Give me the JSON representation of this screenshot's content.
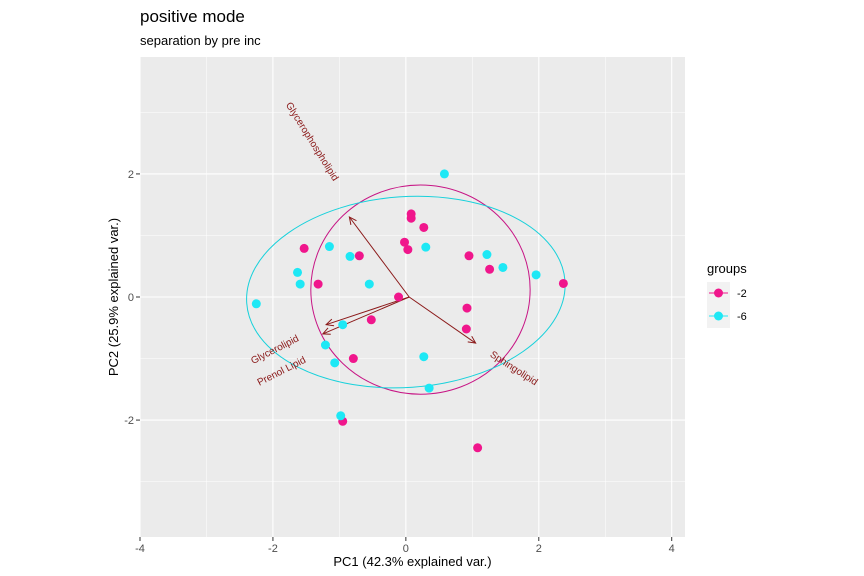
{
  "chart_data": {
    "type": "scatter",
    "title": "positive mode",
    "subtitle": "separation by pre inc",
    "xlabel": "PC1 (42.3% explained var.)",
    "ylabel": "PC2 (25.9% explained var.)",
    "xlim": [
      -4.0,
      4.2
    ],
    "ylim": [
      -3.9,
      3.9
    ],
    "x_ticks": [
      -4,
      -2,
      0,
      2,
      4
    ],
    "y_ticks": [
      -2,
      0,
      2
    ],
    "x_tick_labels": [
      "-4",
      "-2",
      "0",
      "2",
      "4"
    ],
    "y_tick_labels": [
      "-2",
      "0",
      "2"
    ],
    "grid": true,
    "legend": {
      "title": "groups",
      "position": "right",
      "items": [
        {
          "label": "-2",
          "color": "#f0168c"
        },
        {
          "label": "-6",
          "color": "#1ee8f5"
        }
      ]
    },
    "series": [
      {
        "name": "-2",
        "color": "#f0168c",
        "points": [
          [
            0.08,
            1.35
          ],
          [
            0.08,
            1.28
          ],
          [
            0.27,
            1.13
          ],
          [
            -0.02,
            0.89
          ],
          [
            0.03,
            0.77
          ],
          [
            -1.53,
            0.79
          ],
          [
            -0.7,
            0.67
          ],
          [
            -1.32,
            0.21
          ],
          [
            -0.11,
            0.0
          ],
          [
            0.95,
            0.67
          ],
          [
            1.26,
            0.45
          ],
          [
            2.37,
            0.22
          ],
          [
            0.92,
            -0.18
          ],
          [
            0.91,
            -0.52
          ],
          [
            -0.52,
            -0.37
          ],
          [
            -0.79,
            -1.0
          ],
          [
            -0.95,
            -2.02
          ],
          [
            1.08,
            -2.45
          ]
        ]
      },
      {
        "name": "-6",
        "color": "#1ee8f5",
        "points": [
          [
            0.58,
            2.0
          ],
          [
            -1.15,
            0.82
          ],
          [
            -0.84,
            0.66
          ],
          [
            0.3,
            0.81
          ],
          [
            1.22,
            0.69
          ],
          [
            1.46,
            0.48
          ],
          [
            1.96,
            0.36
          ],
          [
            -1.63,
            0.4
          ],
          [
            -1.59,
            0.21
          ],
          [
            -0.55,
            0.21
          ],
          [
            -2.25,
            -0.11
          ],
          [
            -0.95,
            -0.45
          ],
          [
            -1.21,
            -0.78
          ],
          [
            -1.07,
            -1.07
          ],
          [
            0.27,
            -0.97
          ],
          [
            0.35,
            -1.48
          ],
          [
            -0.98,
            -1.93
          ]
        ]
      }
    ],
    "ellipses": [
      {
        "group": "-2",
        "color": "#c71585",
        "cx": 0.22,
        "cy": 0.12,
        "rx": 1.65,
        "ry": 1.7,
        "angle": 0
      },
      {
        "group": "-6",
        "color": "#17d1db",
        "cx": 0.0,
        "cy": 0.08,
        "rx": 2.4,
        "ry": 1.55,
        "angle": 4
      }
    ],
    "loadings": [
      {
        "name": "Glycerophospholipid",
        "x": -0.85,
        "y": 1.3,
        "label_x": -1.45,
        "label_y": 2.5,
        "label_angle": 58
      },
      {
        "name": "Glycerolipid",
        "x": -1.25,
        "y": -0.6,
        "label_x": -1.95,
        "label_y": -0.9,
        "label_angle": -27
      },
      {
        "name": "Prenol Lipid",
        "x": -1.2,
        "y": -0.45,
        "label_x": -1.85,
        "label_y": -1.25,
        "label_angle": -27
      },
      {
        "name": "Sphingolipid",
        "x": 1.05,
        "y": -0.75,
        "label_x": 1.6,
        "label_y": -1.2,
        "label_angle": 33
      }
    ],
    "origin": [
      0.05,
      0.0
    ]
  }
}
